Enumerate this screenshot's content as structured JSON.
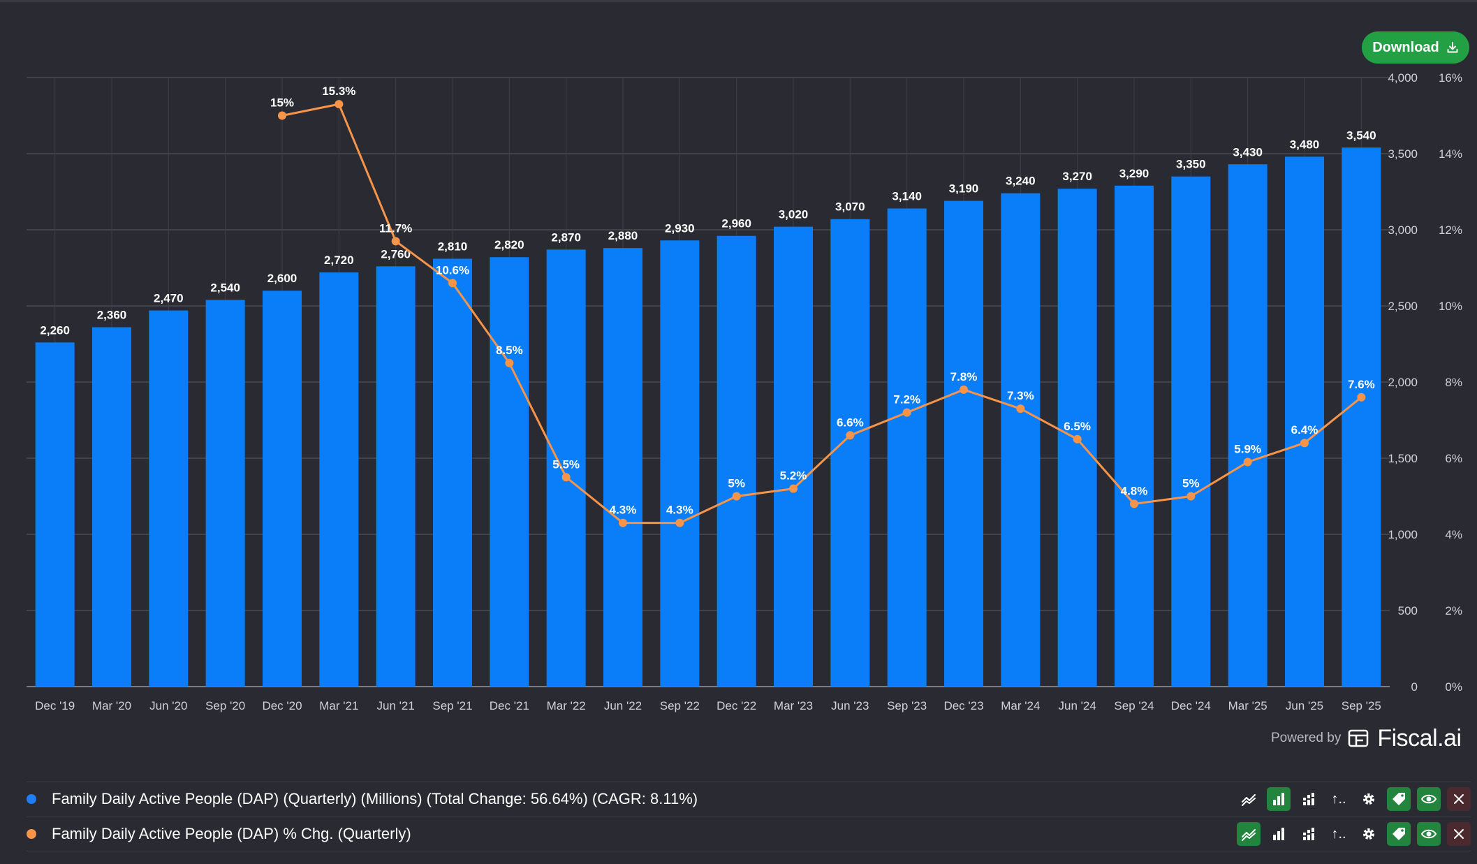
{
  "toolbar": {
    "download_label": "Download"
  },
  "footer": {
    "powered_by": "Powered by",
    "brand": "Fiscal.ai"
  },
  "legend": [
    {
      "label": "Family Daily Active People (DAP) (Quarterly) (Millions) (Total Change: 56.64%) (CAGR: 8.11%)",
      "color": "#1f7ef7"
    },
    {
      "label": "Family Daily Active People (DAP) % Chg. (Quarterly)",
      "color": "#f6944a"
    }
  ],
  "tool_icons": [
    "line-chart-icon",
    "bar-chart-icon",
    "stacked-bar-icon",
    "sort-icon",
    "gear-icon",
    "tag-icon",
    "eye-icon",
    "close-icon"
  ],
  "tool_more_text": "↑..",
  "colors": {
    "background": "#2a2b32",
    "bar": "#0a7ef9",
    "line": "#f6944a",
    "grid": "#4a4b53",
    "download": "#22a043",
    "tool_active": "#22843d"
  },
  "chart_data": {
    "type": "bar",
    "categories": [
      "Dec '19",
      "Mar '20",
      "Jun '20",
      "Sep '20",
      "Dec '20",
      "Mar '21",
      "Jun '21",
      "Sep '21",
      "Dec '21",
      "Mar '22",
      "Jun '22",
      "Sep '22",
      "Dec '22",
      "Mar '23",
      "Jun '23",
      "Sep '23",
      "Dec '23",
      "Mar '24",
      "Jun '24",
      "Sep '24",
      "Dec '24",
      "Mar '25",
      "Jun '25",
      "Sep '25"
    ],
    "series": [
      {
        "type": "bar",
        "axis": "left",
        "values": [
          2260,
          2360,
          2470,
          2540,
          2600,
          2720,
          2760,
          2810,
          2820,
          2870,
          2880,
          2930,
          2960,
          3020,
          3070,
          3140,
          3190,
          3240,
          3270,
          3290,
          3350,
          3430,
          3480,
          3540
        ],
        "labels": [
          "2,260",
          "2,360",
          "2,470",
          "2,540",
          "2,600",
          "2,720",
          "2,760",
          "2,810",
          "2,820",
          "2,870",
          "2,880",
          "2,930",
          "2,960",
          "3,020",
          "3,070",
          "3,140",
          "3,190",
          "3,240",
          "3,270",
          "3,290",
          "3,350",
          "3,430",
          "3,480",
          "3,540"
        ]
      },
      {
        "type": "line",
        "axis": "right",
        "values": [
          null,
          null,
          null,
          null,
          15,
          15.3,
          11.7,
          10.6,
          8.5,
          5.5,
          4.3,
          4.3,
          5,
          5.2,
          6.6,
          7.2,
          7.8,
          7.3,
          6.5,
          4.8,
          5,
          5.9,
          6.4,
          7.6
        ],
        "labels": [
          "",
          "",
          "",
          "",
          "15%",
          "15.3%",
          "11.7%",
          "10.6%",
          "8.5%",
          "5.5%",
          "4.3%",
          "4.3%",
          "5%",
          "5.2%",
          "6.6%",
          "7.2%",
          "7.8%",
          "7.3%",
          "6.5%",
          "4.8%",
          "5%",
          "5.9%",
          "6.4%",
          "7.6%"
        ]
      }
    ],
    "y_left": {
      "min": 0,
      "max": 4000,
      "ticks": [
        0,
        500,
        1000,
        1500,
        2000,
        2500,
        3000,
        3500,
        4000
      ],
      "tick_labels": [
        "0",
        "500",
        "1,000",
        "1,500",
        "2,000",
        "2,500",
        "3,000",
        "3,500",
        "4,000"
      ]
    },
    "y_right": {
      "min": 0,
      "max": 16,
      "ticks": [
        0,
        2,
        4,
        6,
        8,
        10,
        12,
        14,
        16
      ],
      "tick_labels": [
        "0%",
        "2%",
        "4%",
        "6%",
        "8%",
        "10%",
        "12%",
        "14%",
        "16%"
      ]
    },
    "grid": true,
    "legend_position": "bottom"
  }
}
